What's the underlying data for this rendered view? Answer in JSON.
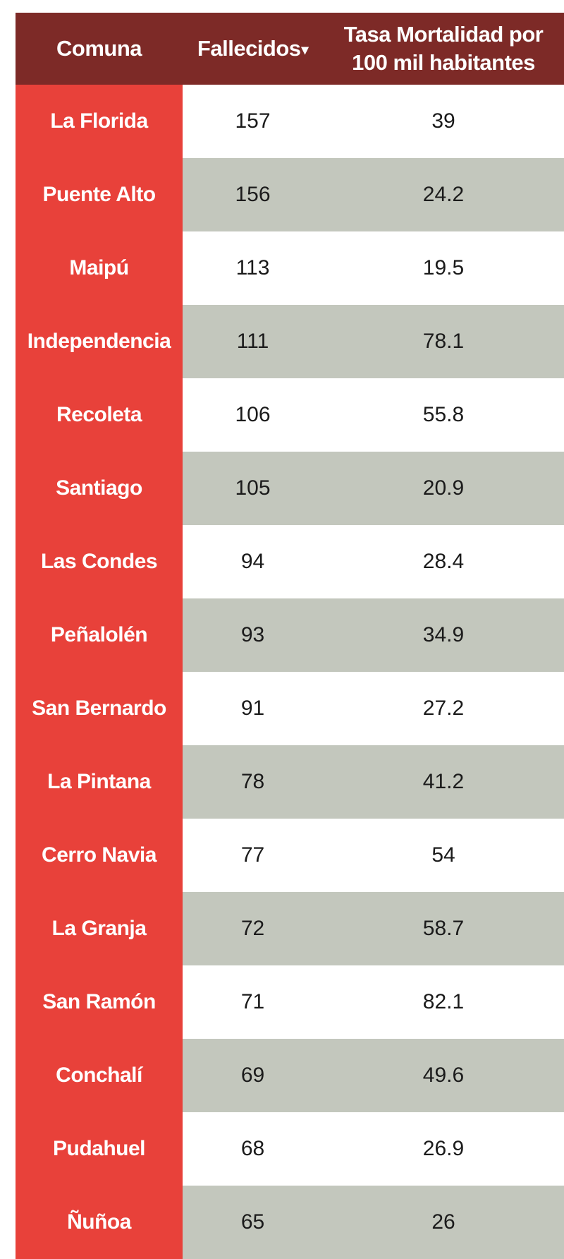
{
  "table": {
    "headers": {
      "comuna": "Comuna",
      "fallecidos": "Fallecidos",
      "sort_indicator": "▾",
      "tasa_line1": "Tasa Mortalidad por",
      "tasa_line2": "100 mil habitantes"
    },
    "rows": [
      {
        "comuna": "La Florida",
        "fallecidos": "157",
        "tasa": "39"
      },
      {
        "comuna": "Puente Alto",
        "fallecidos": "156",
        "tasa": "24.2"
      },
      {
        "comuna": "Maipú",
        "fallecidos": "113",
        "tasa": "19.5"
      },
      {
        "comuna": "Independencia",
        "fallecidos": "111",
        "tasa": "78.1"
      },
      {
        "comuna": "Recoleta",
        "fallecidos": "106",
        "tasa": "55.8"
      },
      {
        "comuna": "Santiago",
        "fallecidos": "105",
        "tasa": "20.9"
      },
      {
        "comuna": "Las Condes",
        "fallecidos": "94",
        "tasa": "28.4"
      },
      {
        "comuna": "Peñalolén",
        "fallecidos": "93",
        "tasa": "34.9"
      },
      {
        "comuna": "San Bernardo",
        "fallecidos": "91",
        "tasa": "27.2"
      },
      {
        "comuna": "La Pintana",
        "fallecidos": "78",
        "tasa": "41.2"
      },
      {
        "comuna": "Cerro Navia",
        "fallecidos": "77",
        "tasa": "54"
      },
      {
        "comuna": "La Granja",
        "fallecidos": "72",
        "tasa": "58.7"
      },
      {
        "comuna": "San Ramón",
        "fallecidos": "71",
        "tasa": "82.1"
      },
      {
        "comuna": "Conchalí",
        "fallecidos": "69",
        "tasa": "49.6"
      },
      {
        "comuna": "Pudahuel",
        "fallecidos": "68",
        "tasa": "26.9"
      },
      {
        "comuna": "Ñuñoa",
        "fallecidos": "65",
        "tasa": "26"
      }
    ]
  },
  "chart_data": {
    "type": "table",
    "columns": [
      "Comuna",
      "Fallecidos",
      "Tasa Mortalidad por 100 mil habitantes"
    ],
    "rows": [
      [
        "La Florida",
        157,
        39
      ],
      [
        "Puente Alto",
        156,
        24.2
      ],
      [
        "Maipú",
        113,
        19.5
      ],
      [
        "Independencia",
        111,
        78.1
      ],
      [
        "Recoleta",
        106,
        55.8
      ],
      [
        "Santiago",
        105,
        20.9
      ],
      [
        "Las Condes",
        94,
        28.4
      ],
      [
        "Peñalolén",
        93,
        34.9
      ],
      [
        "San Bernardo",
        91,
        27.2
      ],
      [
        "La Pintana",
        78,
        41.2
      ],
      [
        "Cerro Navia",
        77,
        54
      ],
      [
        "La Granja",
        72,
        58.7
      ],
      [
        "San Ramón",
        71,
        82.1
      ],
      [
        "Conchalí",
        69,
        49.6
      ],
      [
        "Pudahuel",
        68,
        26.9
      ],
      [
        "Ñuñoa",
        65,
        26
      ]
    ],
    "sorted_by": "Fallecidos",
    "sort_order": "descending"
  },
  "colors": {
    "header_bg": "#7d2a27",
    "comuna_bg": "#e8413a",
    "row_alt_bg": "#c3c7bd",
    "row_bg": "#ffffff"
  }
}
